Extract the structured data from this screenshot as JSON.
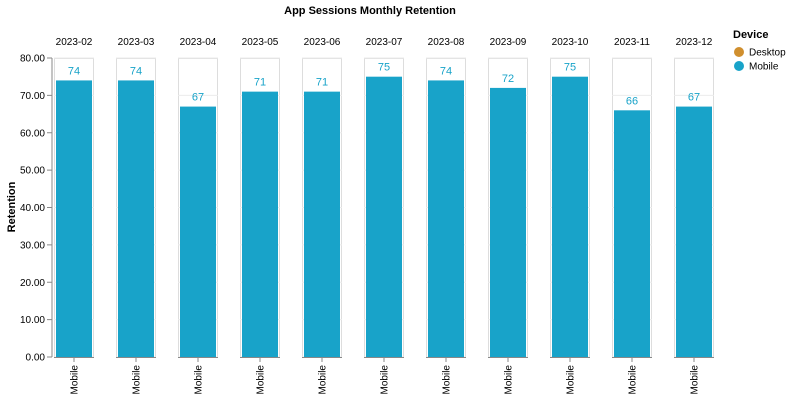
{
  "chart_data": {
    "type": "bar",
    "title": "App Sessions Monthly Retention",
    "ylabel": "Retention",
    "xlabel": "",
    "ylim": [
      0,
      80
    ],
    "y_ticks": [
      "0.00",
      "10.00",
      "20.00",
      "30.00",
      "40.00",
      "50.00",
      "60.00",
      "70.00",
      "80.00"
    ],
    "facets": [
      "2023-02",
      "2023-03",
      "2023-04",
      "2023-05",
      "2023-06",
      "2023-07",
      "2023-08",
      "2023-09",
      "2023-10",
      "2023-11",
      "2023-12"
    ],
    "category": "Mobile",
    "series": [
      {
        "name": "Mobile",
        "values": [
          74,
          74,
          67,
          71,
          71,
          75,
          74,
          72,
          75,
          66,
          67
        ],
        "labels": [
          "74",
          "74",
          "67",
          "71",
          "71",
          "75",
          "74",
          "72",
          "75",
          "66",
          "67"
        ]
      }
    ],
    "legend": {
      "title": "Device",
      "placement": "right",
      "entries": [
        {
          "label": "Desktop",
          "color": "#d08f2e"
        },
        {
          "label": "Mobile",
          "color": "#18a3c9"
        }
      ]
    },
    "colors": {
      "bar": "#18a3c9",
      "label": "#18a3c9"
    },
    "grid": true
  }
}
